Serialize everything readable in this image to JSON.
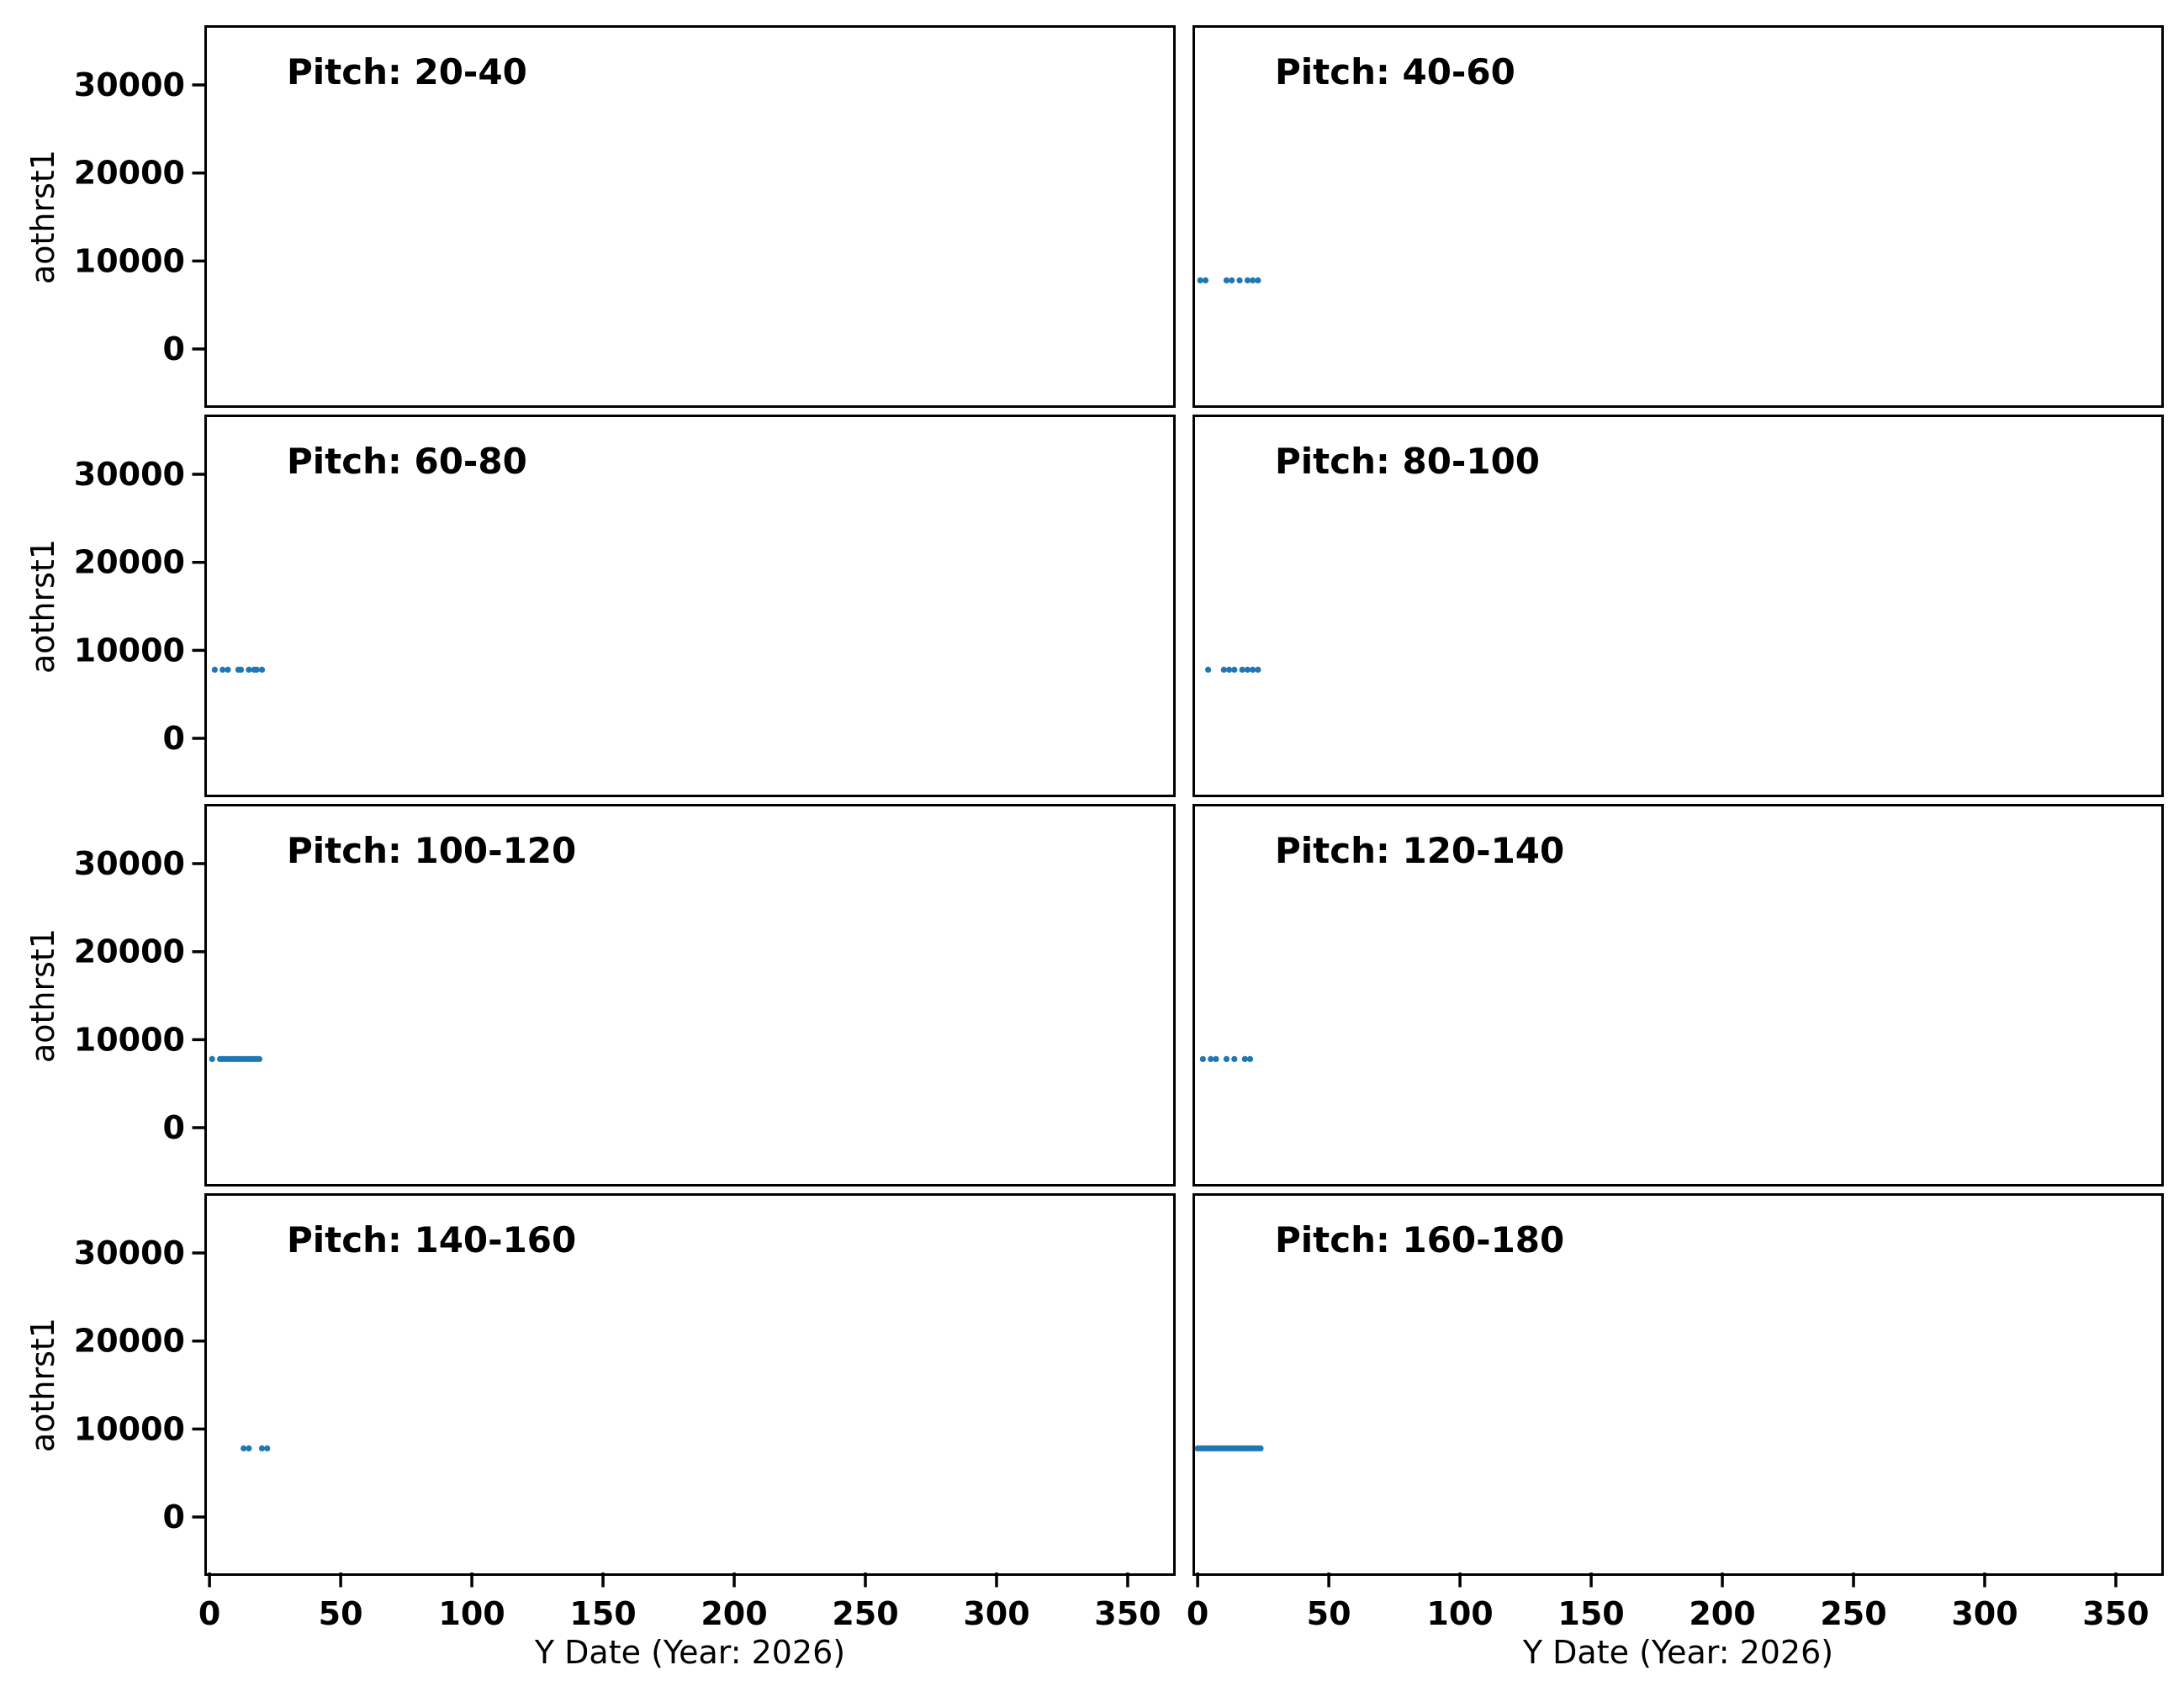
{
  "figure": {
    "background": "#ffffff",
    "text_color": "#000000",
    "accent_color": "#1f77b4",
    "xlabel": "Y Date (Year: 2026)",
    "ylabel": "aothrst1",
    "x_ticks": [
      0,
      50,
      100,
      150,
      200,
      250,
      300,
      350
    ],
    "y_ticks": [
      0,
      10000,
      20000,
      30000
    ],
    "xlim": [
      -1,
      367
    ],
    "ylim": [
      -6300,
      36500
    ],
    "grid": false,
    "legend": "none",
    "layout": {
      "rows": 4,
      "cols": 2,
      "shared_x": true,
      "shared_y": true
    }
  },
  "chart_data": [
    {
      "type": "scatter",
      "title": "Pitch: 20-40",
      "x": [],
      "y": []
    },
    {
      "type": "scatter",
      "title": "Pitch: 40-60",
      "x": [
        1,
        3,
        11,
        13,
        16,
        19,
        21,
        23
      ],
      "y": [
        7800,
        7800,
        7800,
        7800,
        7800,
        7800,
        7800,
        7800
      ]
    },
    {
      "type": "scatter",
      "title": "Pitch: 60-80",
      "x": [
        2,
        5,
        7,
        11,
        12,
        15,
        17,
        18,
        20
      ],
      "y": [
        7800,
        7800,
        7800,
        7800,
        7800,
        7800,
        7800,
        7800,
        7800
      ]
    },
    {
      "type": "scatter",
      "title": "Pitch: 80-100",
      "x": [
        4,
        10,
        12,
        14,
        17,
        19,
        21,
        23
      ],
      "y": [
        7800,
        7800,
        7800,
        7800,
        7800,
        7800,
        7800,
        7800
      ]
    },
    {
      "type": "scatter",
      "title": "Pitch: 100-120",
      "x": [
        1,
        4,
        5,
        6,
        7,
        8,
        9,
        10,
        11,
        12,
        13,
        14,
        15,
        16,
        17,
        18,
        19
      ],
      "y": [
        7800,
        7800,
        7800,
        7800,
        7800,
        7800,
        7800,
        7800,
        7800,
        7800,
        7800,
        7800,
        7800,
        7800,
        7800,
        7800,
        7800
      ]
    },
    {
      "type": "scatter",
      "title": "Pitch: 120-140",
      "x": [
        2,
        5,
        7,
        11,
        14,
        18,
        20
      ],
      "y": [
        7800,
        7800,
        7800,
        7800,
        7800,
        7800,
        7800
      ]
    },
    {
      "type": "scatter",
      "title": "Pitch: 140-160",
      "x": [
        13,
        15,
        20,
        22
      ],
      "y": [
        7800,
        7800,
        7800,
        7800
      ]
    },
    {
      "type": "scatter",
      "title": "Pitch: 160-180",
      "x": [
        0,
        1,
        2,
        3,
        4,
        5,
        6,
        7,
        8,
        9,
        10,
        11,
        12,
        13,
        14,
        15,
        16,
        17,
        18,
        19,
        20,
        21,
        22,
        23,
        24
      ],
      "y": [
        7800,
        7800,
        7800,
        7800,
        7800,
        7800,
        7800,
        7800,
        7800,
        7800,
        7800,
        7800,
        7800,
        7800,
        7800,
        7800,
        7800,
        7800,
        7800,
        7800,
        7800,
        7800,
        7800,
        7800,
        7800
      ]
    }
  ]
}
